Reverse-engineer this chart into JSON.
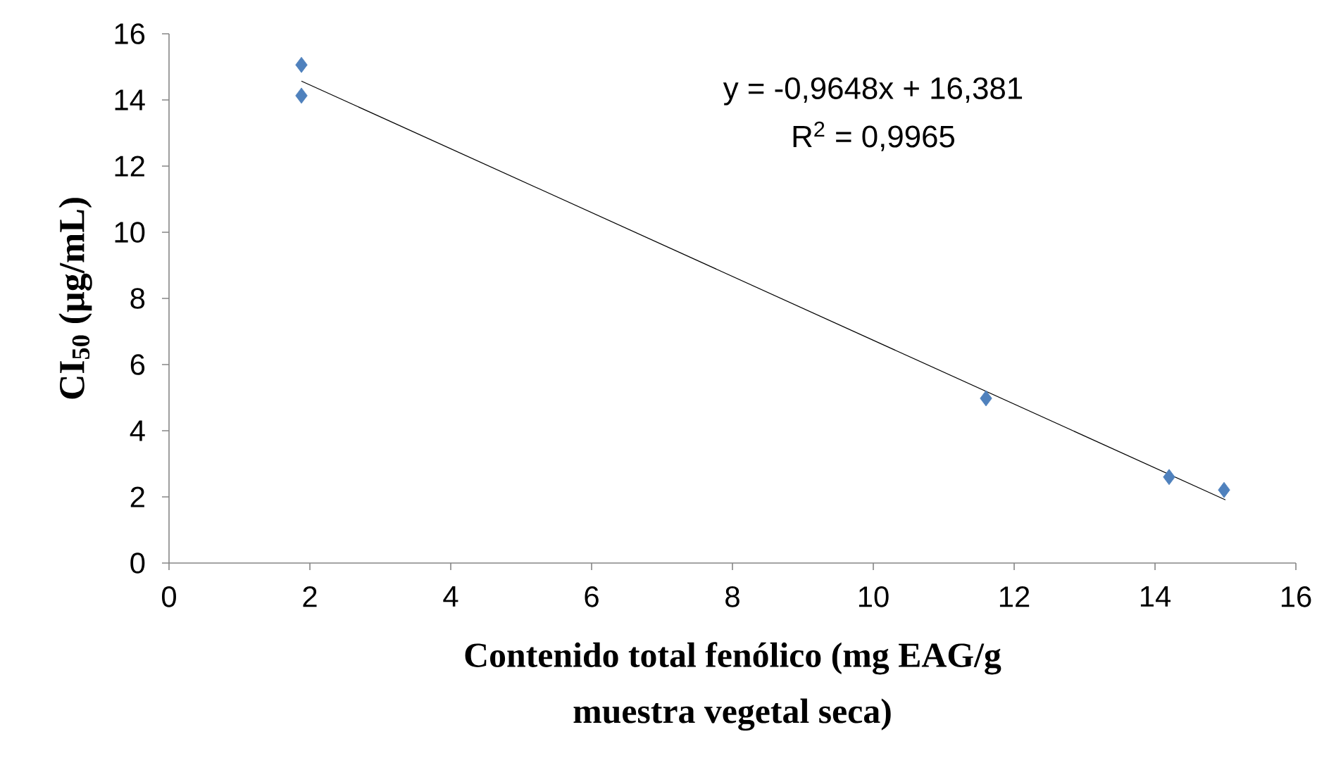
{
  "chart_data": {
    "type": "scatter",
    "xlabel": "Contenido total fenólico (mg EAG/g muestra vegetal seca)",
    "ylabel": "CI$_{50}$ (µg/mL)",
    "xlim": [
      0,
      16
    ],
    "ylim": [
      0,
      16
    ],
    "xticks": [
      0,
      2,
      4,
      6,
      8,
      10,
      12,
      14,
      16
    ],
    "yticks": [
      0,
      2,
      4,
      6,
      8,
      10,
      12,
      14,
      16
    ],
    "marker": "diamond",
    "grid": false,
    "annotations": [
      "y = -0,9648x + 16,381",
      "R$^{2}$ = 0,9965"
    ],
    "series": [
      {
        "type": "scatter",
        "color": "#4f81bd",
        "x": [
          1.88,
          1.88,
          11.6,
          14.2,
          14.98
        ],
        "values": [
          15.06,
          14.13,
          4.98,
          2.6,
          2.21
        ]
      },
      {
        "type": "line",
        "color": "#000000",
        "marker": "none",
        "x": [
          1.88,
          15.0
        ],
        "values": [
          14.57,
          1.91
        ]
      }
    ]
  }
}
